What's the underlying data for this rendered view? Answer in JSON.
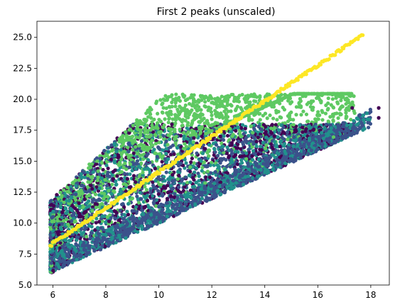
{
  "chart_data": {
    "type": "scatter",
    "title": "First 2 peaks (unscaled)",
    "xlabel": "",
    "ylabel": "",
    "xlim": [
      5.4,
      18.7
    ],
    "ylim": [
      5.0,
      26.3
    ],
    "xticks": [
      6,
      8,
      10,
      12,
      14,
      16,
      18
    ],
    "yticks": [
      5.0,
      7.5,
      10.0,
      12.5,
      15.0,
      17.5,
      20.0,
      22.5,
      25.0
    ],
    "xtick_labels": [
      "6",
      "8",
      "10",
      "12",
      "14",
      "16",
      "18"
    ],
    "ytick_labels": [
      "5.0",
      "7.5",
      "10.0",
      "12.5",
      "15.0",
      "17.5",
      "20.0",
      "22.5",
      "25.0"
    ],
    "grid": false,
    "legend": "none",
    "colormap": [
      "#440154",
      "#3b528b",
      "#21918c",
      "#5ec962",
      "#fde725"
    ],
    "point_cloud": {
      "description_region": "dense cloud bounded below by y≈x, above by y≈2x up to y≈20.5",
      "x_range": [
        5.9,
        18.4
      ],
      "y_range": [
        6.0,
        20.5
      ],
      "lower_boundary": [
        [
          5.9,
          6.0
        ],
        [
          18.0,
          17.8
        ]
      ],
      "upper_boundary": [
        [
          5.9,
          11.8
        ],
        [
          10.2,
          20.4
        ],
        [
          17.0,
          20.5
        ]
      ],
      "color_classes": [
        0,
        1,
        2,
        3
      ]
    },
    "series": [
      {
        "color_class": 4,
        "line_from": [
          5.9,
          8.2
        ],
        "line_to": [
          17.7,
          25.2
        ]
      }
    ],
    "outliers": [
      {
        "x": 18.3,
        "y": 19.3,
        "color_class": 0
      },
      {
        "x": 18.3,
        "y": 18.5,
        "color_class": 0
      },
      {
        "x": 17.3,
        "y": 19.3,
        "color_class": 0
      }
    ]
  }
}
